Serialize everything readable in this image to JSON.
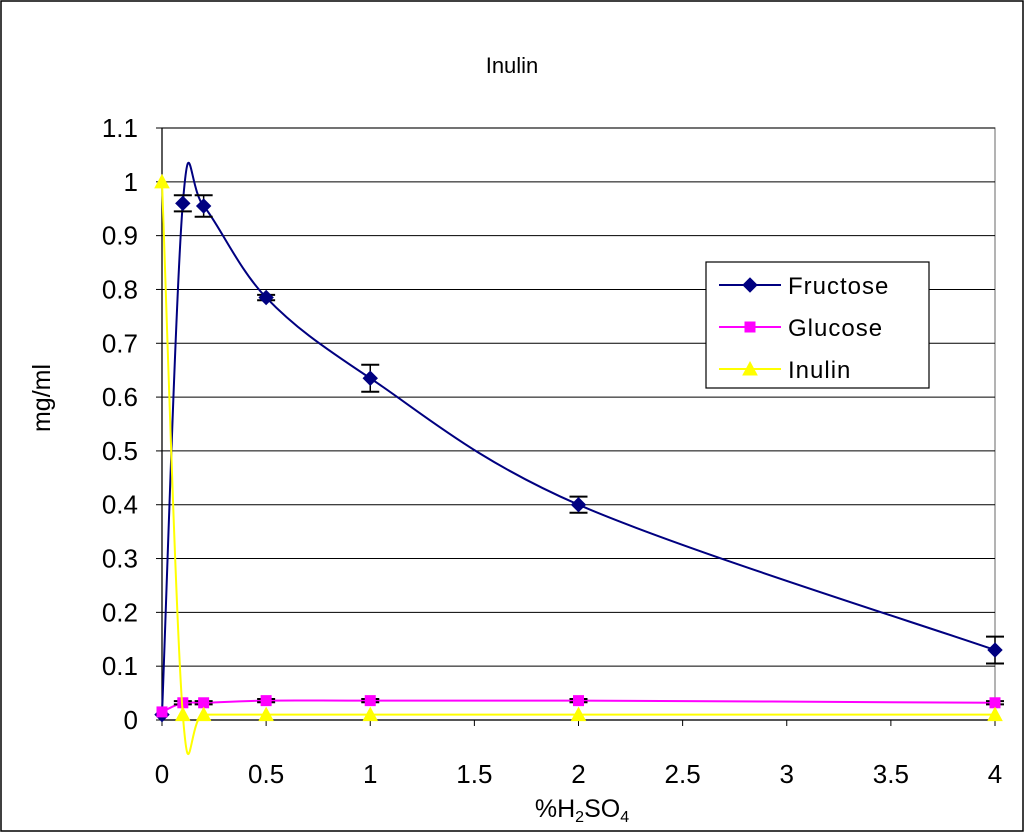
{
  "chart_data": {
    "type": "line",
    "title": "Inulin",
    "ylabel": "mg/ml",
    "xlabel": {
      "prefix": "%H",
      "sub1": "2",
      "mid": "SO",
      "sub2": "4"
    },
    "xlim": [
      0,
      4
    ],
    "ylim": [
      0,
      1.1
    ],
    "xticks": [
      "0",
      "0.5",
      "1",
      "1.5",
      "2",
      "2.5",
      "3",
      "3.5",
      "4"
    ],
    "yticks": [
      "0",
      "0.1",
      "0.2",
      "0.3",
      "0.4",
      "0.5",
      "0.6",
      "0.7",
      "0.8",
      "0.9",
      "1",
      "1.1"
    ],
    "grid": "horizontal",
    "legend_position": "right",
    "series": [
      {
        "name": "Fructose",
        "color": "#000080",
        "marker": "diamond",
        "x": [
          0,
          0.1,
          0.2,
          0.5,
          1,
          2,
          4
        ],
        "y": [
          0.01,
          0.96,
          0.955,
          0.785,
          0.635,
          0.4,
          0.13
        ],
        "err": [
          0,
          0.015,
          0.02,
          0.005,
          0.025,
          0.015,
          0.025
        ]
      },
      {
        "name": "Glucose",
        "color": "#FF00FF",
        "marker": "square",
        "x": [
          0,
          0.1,
          0.2,
          0.5,
          1,
          2,
          4
        ],
        "y": [
          0.015,
          0.032,
          0.032,
          0.036,
          0.036,
          0.036,
          0.032
        ],
        "err": [
          0,
          0.003,
          0.003,
          0.003,
          0.003,
          0.003,
          0.003
        ]
      },
      {
        "name": "Inulin",
        "color": "#FFFF00",
        "marker": "triangle",
        "x": [
          0,
          0.1,
          0.2,
          0.5,
          1,
          2,
          4
        ],
        "y": [
          1.0,
          0.01,
          0.01,
          0.01,
          0.01,
          0.01,
          0.01
        ],
        "err": [
          0,
          0,
          0,
          0,
          0,
          0,
          0
        ]
      }
    ]
  }
}
